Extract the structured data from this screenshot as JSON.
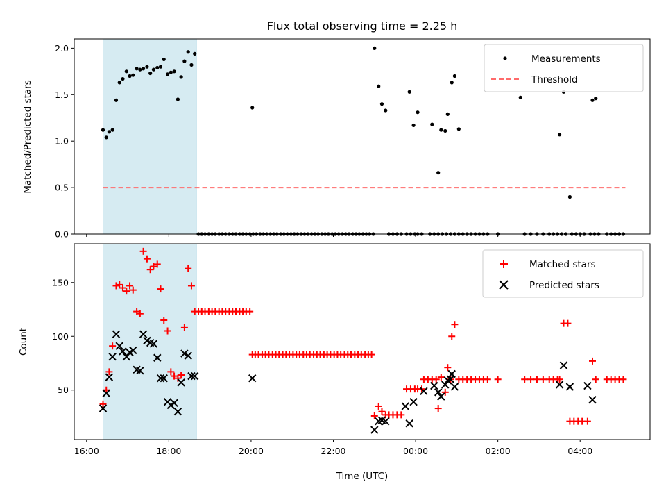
{
  "chart_data": [
    {
      "type": "scatter",
      "title": "Flux total observing time = 2.25 h",
      "xlabel": "",
      "ylabel": "Matched/Predicted stars",
      "xlim": [
        15.7,
        29.7
      ],
      "ylim": [
        0,
        2.1
      ],
      "x_ticks": [
        16,
        18,
        20,
        22,
        24,
        26,
        28
      ],
      "y_ticks": [
        0.0,
        0.5,
        1.0,
        1.5,
        2.0
      ],
      "y_tick_labels": [
        "0.0",
        "0.5",
        "1.0",
        "1.5",
        "2.0"
      ],
      "shaded_span": [
        16.4,
        18.67
      ],
      "shade_color": "#add8e6",
      "legend_position": "upper right",
      "series": [
        {
          "name": "Measurements",
          "marker": "dot",
          "color": "#000000",
          "x": [
            16.4,
            16.48,
            16.55,
            16.63,
            16.72,
            16.8,
            16.88,
            16.97,
            17.05,
            17.13,
            17.22,
            17.3,
            17.38,
            17.47,
            17.55,
            17.63,
            17.72,
            17.8,
            17.88,
            17.97,
            18.05,
            18.13,
            18.22,
            18.3,
            18.38,
            18.47,
            18.55,
            18.63,
            20.03,
            23.0,
            23.1,
            23.18,
            23.27,
            23.85,
            23.95,
            24.05,
            24.4,
            24.55,
            24.62,
            24.72,
            24.78,
            24.88,
            24.95,
            25.05,
            26.55,
            27.5,
            27.6,
            27.75,
            28.3,
            28.38
          ],
          "y": [
            1.12,
            1.04,
            1.1,
            1.12,
            1.44,
            1.63,
            1.67,
            1.75,
            1.7,
            1.71,
            1.78,
            1.77,
            1.78,
            1.8,
            1.73,
            1.77,
            1.79,
            1.8,
            1.88,
            1.72,
            1.74,
            1.75,
            1.45,
            1.69,
            1.86,
            1.96,
            1.82,
            1.94,
            1.36,
            2.0,
            1.59,
            1.4,
            1.33,
            1.53,
            1.17,
            1.31,
            1.18,
            0.66,
            1.12,
            1.11,
            1.29,
            1.63,
            1.7,
            1.13,
            1.47,
            1.07,
            1.53,
            0.4,
            1.44,
            1.46
          ]
        },
        {
          "name": "Zero ratio points",
          "marker": "dot",
          "color": "#000000",
          "show_in_legend": false,
          "x": [
            18.72,
            18.8,
            18.88,
            18.97,
            19.05,
            19.13,
            19.22,
            19.3,
            19.38,
            19.47,
            19.55,
            19.63,
            19.72,
            19.8,
            19.88,
            19.97,
            20.05,
            20.13,
            20.22,
            20.3,
            20.38,
            20.47,
            20.55,
            20.63,
            20.72,
            20.8,
            20.88,
            20.97,
            21.05,
            21.13,
            21.22,
            21.3,
            21.38,
            21.47,
            21.55,
            21.63,
            21.72,
            21.8,
            21.88,
            21.97,
            22.05,
            22.13,
            22.22,
            22.3,
            22.38,
            22.47,
            22.55,
            22.63,
            22.72,
            22.8,
            22.88,
            22.97,
            23.35,
            23.45,
            23.55,
            23.65,
            23.78,
            23.88,
            23.98,
            24.05,
            24.15,
            24.35,
            24.45,
            24.55,
            24.65,
            24.75,
            24.85,
            24.95,
            25.05,
            25.15,
            25.25,
            25.35,
            25.45,
            25.55,
            25.65,
            25.75,
            26.0,
            26.65,
            26.8,
            26.95,
            27.1,
            27.25,
            27.35,
            27.45,
            27.55,
            27.65,
            27.8,
            27.9,
            28.0,
            28.1,
            28.25,
            28.35,
            28.45,
            28.65,
            28.75,
            28.85,
            28.95,
            29.05
          ],
          "y": [
            0,
            0,
            0,
            0,
            0,
            0,
            0,
            0,
            0,
            0,
            0,
            0,
            0,
            0,
            0,
            0,
            0,
            0,
            0,
            0,
            0,
            0,
            0,
            0,
            0,
            0,
            0,
            0,
            0,
            0,
            0,
            0,
            0,
            0,
            0,
            0,
            0,
            0,
            0,
            0,
            0,
            0,
            0,
            0,
            0,
            0,
            0,
            0,
            0,
            0,
            0,
            0,
            0,
            0,
            0,
            0,
            0,
            0,
            0,
            0,
            0,
            0,
            0,
            0,
            0,
            0,
            0,
            0,
            0,
            0,
            0,
            0,
            0,
            0,
            0,
            0,
            0,
            0,
            0,
            0,
            0,
            0,
            0,
            0,
            0,
            0,
            0,
            0,
            0,
            0,
            0,
            0,
            0,
            0,
            0,
            0,
            0,
            0
          ]
        },
        {
          "name": "Threshold",
          "line": "dashed",
          "color": "#ff6b6b",
          "x": [
            16.4,
            29.1
          ],
          "y": [
            0.5,
            0.5
          ]
        }
      ]
    },
    {
      "type": "scatter",
      "title": "",
      "xlabel": "Time (UTC)",
      "ylabel": "Count",
      "xlim": [
        15.7,
        29.7
      ],
      "ylim": [
        4,
        186
      ],
      "x_ticks": [
        16,
        18,
        20,
        22,
        24,
        26,
        28
      ],
      "x_tick_labels": [
        "16:00",
        "18:00",
        "20:00",
        "22:00",
        "00:00",
        "02:00",
        "04:00"
      ],
      "y_ticks": [
        50,
        100,
        150
      ],
      "y_tick_labels": [
        "50",
        "100",
        "150"
      ],
      "shaded_span": [
        16.4,
        18.67
      ],
      "shade_color": "#add8e6",
      "legend_position": "upper right",
      "series": [
        {
          "name": "Matched stars",
          "marker": "plus",
          "color": "#ff0000",
          "x": [
            16.4,
            16.48,
            16.55,
            16.63,
            16.72,
            16.8,
            16.88,
            16.97,
            17.05,
            17.13,
            17.22,
            17.3,
            17.38,
            17.47,
            17.55,
            17.63,
            17.72,
            17.8,
            17.88,
            17.97,
            18.05,
            18.13,
            18.22,
            18.3,
            18.38,
            18.47,
            18.55,
            18.63,
            18.72,
            18.8,
            18.88,
            18.97,
            19.05,
            19.13,
            19.22,
            19.3,
            19.38,
            19.47,
            19.55,
            19.63,
            19.72,
            19.8,
            19.88,
            19.97,
            20.03,
            20.1,
            20.18,
            20.27,
            20.35,
            20.43,
            20.52,
            20.6,
            20.68,
            20.77,
            20.85,
            20.93,
            21.02,
            21.1,
            21.18,
            21.27,
            21.35,
            21.43,
            21.52,
            21.6,
            21.68,
            21.77,
            21.85,
            21.93,
            22.02,
            22.1,
            22.18,
            22.27,
            22.35,
            22.43,
            22.52,
            22.6,
            22.68,
            22.77,
            22.85,
            22.93,
            23.0,
            23.1,
            23.18,
            23.27,
            23.35,
            23.45,
            23.55,
            23.65,
            23.78,
            23.88,
            23.98,
            24.05,
            24.15,
            24.2,
            24.3,
            24.4,
            24.5,
            24.55,
            24.62,
            24.72,
            24.78,
            24.85,
            24.88,
            24.95,
            25.05,
            25.15,
            25.25,
            25.35,
            25.45,
            25.55,
            25.65,
            25.75,
            26.0,
            26.65,
            26.8,
            26.95,
            27.1,
            27.25,
            27.35,
            27.45,
            27.5,
            27.6,
            27.7,
            27.75,
            27.85,
            27.95,
            28.05,
            28.18,
            28.3,
            28.38,
            28.65,
            28.75,
            28.85,
            28.95,
            29.05
          ],
          "y": [
            37,
            50,
            67,
            91,
            147,
            148,
            145,
            142,
            147,
            143,
            123,
            121,
            179,
            172,
            162,
            165,
            167,
            144,
            115,
            105,
            67,
            63,
            61,
            64,
            108,
            163,
            147,
            123,
            123,
            123,
            123,
            123,
            123,
            123,
            123,
            123,
            123,
            123,
            123,
            123,
            123,
            123,
            123,
            123,
            83,
            83,
            83,
            83,
            83,
            83,
            83,
            83,
            83,
            83,
            83,
            83,
            83,
            83,
            83,
            83,
            83,
            83,
            83,
            83,
            83,
            83,
            83,
            83,
            83,
            83,
            83,
            83,
            83,
            83,
            83,
            83,
            83,
            83,
            83,
            83,
            26,
            35,
            30,
            27,
            27,
            27,
            27,
            27,
            51,
            51,
            51,
            51,
            51,
            60,
            60,
            60,
            60,
            33,
            62,
            48,
            71,
            60,
            100,
            111,
            60,
            60,
            60,
            60,
            60,
            60,
            60,
            60,
            60,
            60,
            60,
            60,
            60,
            60,
            60,
            60,
            60,
            112,
            112,
            21,
            21,
            21,
            21,
            21,
            77,
            60,
            60,
            60,
            60,
            60,
            60
          ]
        },
        {
          "name": "Predicted stars",
          "marker": "x",
          "color": "#000000",
          "x": [
            16.4,
            16.48,
            16.55,
            16.63,
            16.72,
            16.8,
            16.88,
            16.97,
            17.05,
            17.13,
            17.22,
            17.3,
            17.38,
            17.47,
            17.55,
            17.63,
            17.72,
            17.8,
            17.88,
            17.97,
            18.05,
            18.13,
            18.22,
            18.3,
            18.38,
            18.47,
            18.55,
            18.63,
            20.03,
            23.0,
            23.1,
            23.18,
            23.27,
            23.75,
            23.85,
            23.95,
            24.2,
            24.45,
            24.55,
            24.62,
            24.72,
            24.78,
            24.85,
            24.88,
            24.95,
            27.5,
            27.6,
            27.75,
            28.18,
            28.3
          ],
          "y": [
            33,
            47,
            62,
            81,
            102,
            91,
            86,
            81,
            85,
            87,
            69,
            68,
            102,
            96,
            94,
            93,
            80,
            61,
            61,
            39,
            36,
            38,
            30,
            57,
            84,
            82,
            63,
            63,
            61,
            13,
            21,
            22,
            21,
            35,
            19,
            39,
            49,
            54,
            48,
            44,
            55,
            59,
            60,
            65,
            53,
            55,
            73,
            53,
            54,
            41
          ]
        }
      ]
    }
  ]
}
